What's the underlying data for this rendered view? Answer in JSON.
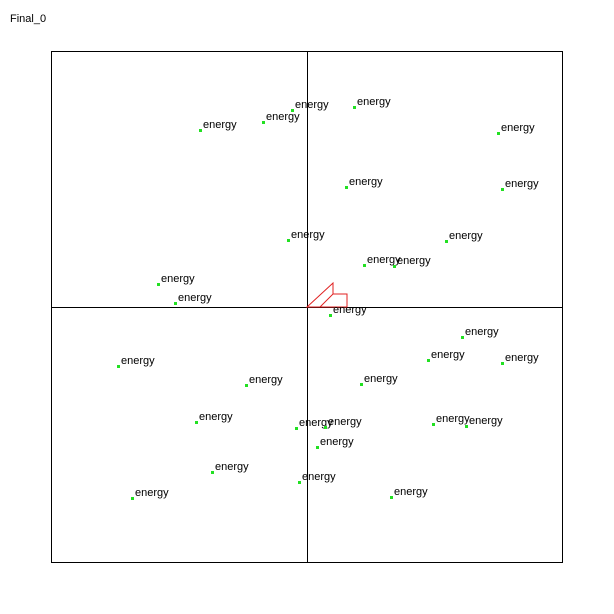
{
  "window": {
    "title": "Final_0"
  },
  "colors": {
    "energy": "#22e022",
    "agent": "#e02020",
    "frame": "#000000",
    "background": "#ffffff"
  },
  "agent": {
    "label": "",
    "icon": "red-arrow-agent"
  },
  "energy_items": [
    {
      "label": "energy"
    },
    {
      "label": "energy"
    },
    {
      "label": "energy"
    },
    {
      "label": "energy"
    },
    {
      "label": "energy"
    },
    {
      "label": "energy"
    },
    {
      "label": "energy"
    },
    {
      "label": "energy"
    },
    {
      "label": "energy"
    },
    {
      "label": "energy"
    },
    {
      "label": "energy"
    },
    {
      "label": "energy"
    },
    {
      "label": "energy"
    },
    {
      "label": "energy"
    },
    {
      "label": "energy"
    },
    {
      "label": "energy"
    },
    {
      "label": "energy"
    },
    {
      "label": "energy"
    },
    {
      "label": "energy"
    },
    {
      "label": "energy"
    },
    {
      "label": "energy"
    },
    {
      "label": "energy"
    },
    {
      "label": "energy"
    },
    {
      "label": "energy"
    },
    {
      "label": "energy"
    },
    {
      "label": "energy"
    },
    {
      "label": "energy"
    },
    {
      "label": "energy"
    },
    {
      "label": "energy"
    },
    {
      "label": "energy"
    }
  ]
}
